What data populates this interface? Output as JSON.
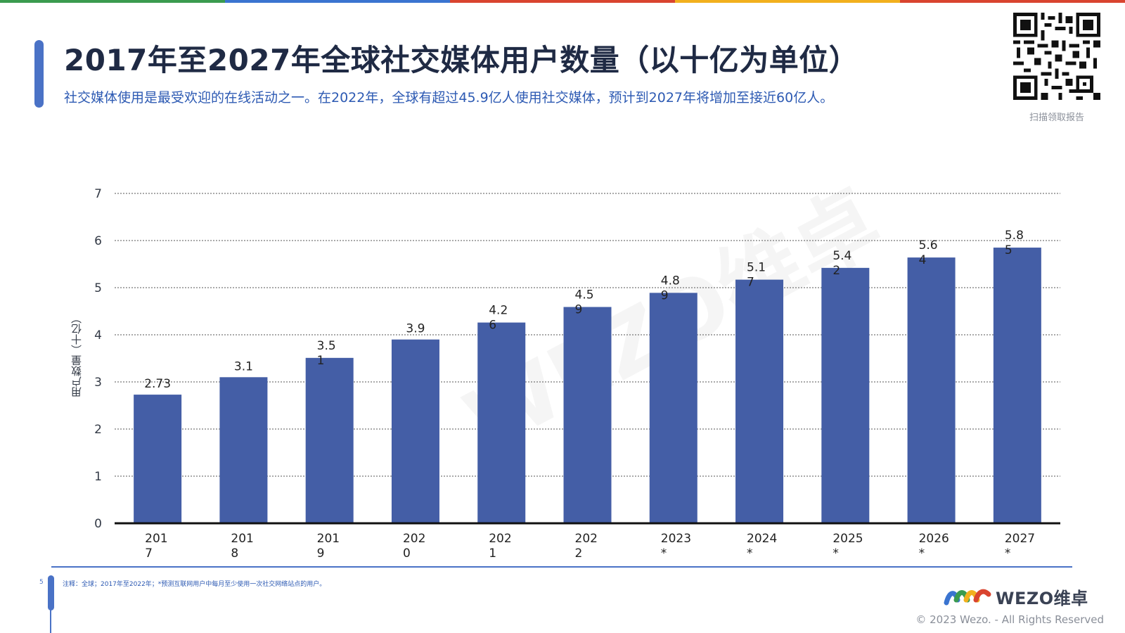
{
  "header": {
    "title": "2017年至2027年全球社交媒体用户数量（以十亿为单位）",
    "subtitle": "社交媒体使用是最受欢迎的在线活动之一。在2022年，全球有超过45.9亿人使用社交媒体，预计到2027年将增加至接近60亿人。"
  },
  "qr": {
    "caption": "扫描领取报告",
    "icon": "qr-code-icon"
  },
  "colors": {
    "bar": "#445ea6",
    "accent": "#4a72c6",
    "stripe": [
      "#3a9b4f",
      "#3a74d0",
      "#d9442f",
      "#f2b01e",
      "#d9442f"
    ]
  },
  "chart_data": {
    "type": "bar",
    "title": "",
    "xlabel": "",
    "ylabel": "用户数量（十亿）",
    "ylim": [
      0,
      7
    ],
    "yticks": [
      "0",
      "1",
      "2",
      "3",
      "4",
      "5",
      "6",
      "7"
    ],
    "grid": true,
    "categories": [
      "2017",
      "2018",
      "2019",
      "2020",
      "2021",
      "2022",
      "2023*",
      "2024*",
      "2025*",
      "2026*",
      "2027*"
    ],
    "category_labels": [
      [
        "201",
        "7"
      ],
      [
        "201",
        "8"
      ],
      [
        "201",
        "9"
      ],
      [
        "202",
        "0"
      ],
      [
        "202",
        "1"
      ],
      [
        "202",
        "2"
      ],
      [
        "2023",
        "*"
      ],
      [
        "2024",
        "*"
      ],
      [
        "2025",
        "*"
      ],
      [
        "2026",
        "*"
      ],
      [
        "2027",
        "*"
      ]
    ],
    "values": [
      2.73,
      3.1,
      3.51,
      3.9,
      4.26,
      4.59,
      4.89,
      5.17,
      5.42,
      5.64,
      5.85
    ],
    "value_labels": [
      [
        "2.73"
      ],
      [
        "3.1"
      ],
      [
        "3.5",
        "1"
      ],
      [
        "3.9"
      ],
      [
        "4.2",
        "6"
      ],
      [
        "4.5",
        "9"
      ],
      [
        "4.8",
        "9"
      ],
      [
        "5.1",
        "7"
      ],
      [
        "5.4",
        "2"
      ],
      [
        "5.6",
        "4"
      ],
      [
        "5.8",
        "5"
      ]
    ]
  },
  "footer": {
    "page_number": "5",
    "note": "注释：全球；2017年至2022年；*预测互联网用户中每月至少使用一次社交网络站点的用户。",
    "brand": "WEZO维卓",
    "copyright": "© 2023 Wezo. - All Rights Reserved"
  },
  "watermark": "WEZO维卓"
}
